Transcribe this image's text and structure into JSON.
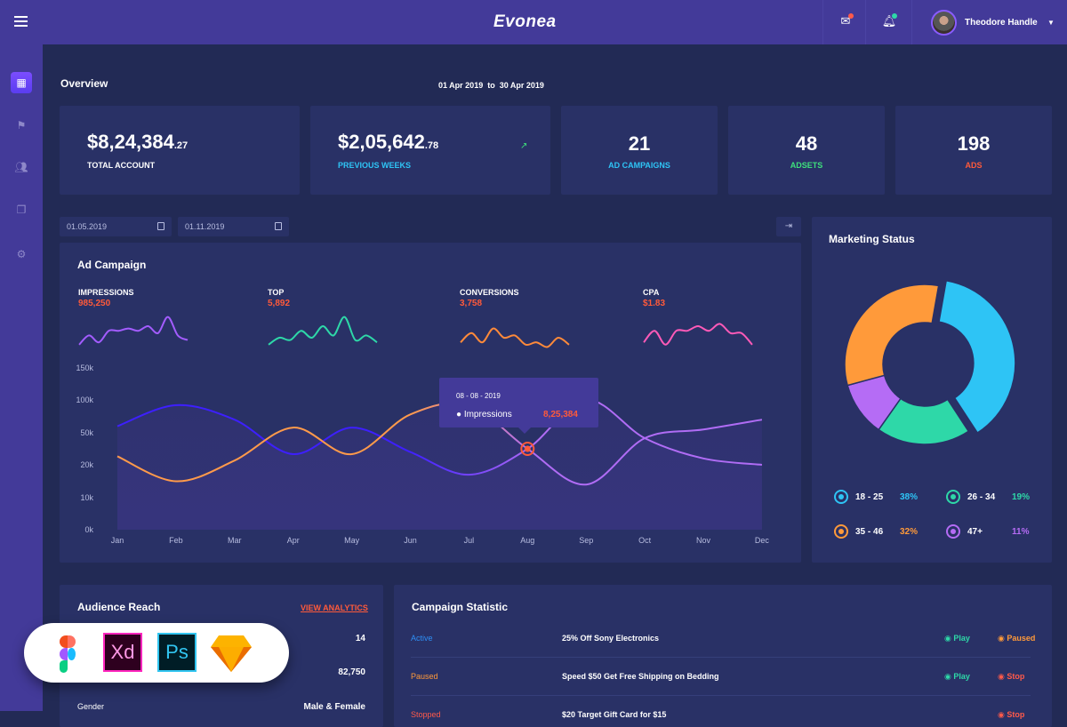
{
  "header": {
    "brand": "Evonea",
    "user_name": "Theodore Handle",
    "icons": [
      "menu-icon",
      "mail-icon",
      "bell-icon",
      "caret-down-icon"
    ],
    "notif_colors": [
      "#ff5a4a",
      "#2ed8a8"
    ]
  },
  "sidebar": {
    "items": [
      "dashboard-icon",
      "flag-icon",
      "users-icon",
      "pages-icon",
      "gear-icon"
    ]
  },
  "overview": {
    "title": "Overview",
    "date_from": "01 Apr 2019",
    "date_to_word": "to",
    "date_to": "30 Apr 2019",
    "stats": [
      {
        "value": "$8,24,384",
        "decimals": ".27",
        "label": "TOTAL ACCOUNT",
        "color": "#ffffff"
      },
      {
        "value": "$2,05,642",
        "decimals": ".78",
        "label": "PREVIOUS WEEKS",
        "color": "#2ec4f5"
      },
      {
        "value": "21",
        "label": "AD CAMPAIGNS",
        "color": "#2ec4f5"
      },
      {
        "value": "48",
        "label": "ADSETS",
        "color": "#3ee07c"
      },
      {
        "value": "198",
        "label": "ADS",
        "color": "#ff5a3a"
      }
    ]
  },
  "filters": {
    "date1": "01.05.2019",
    "date2": "01.11.2019"
  },
  "ad_campaign": {
    "title": "Ad Campaign",
    "metrics": [
      {
        "label": "IMPRESSIONS",
        "value": "985,250",
        "color": "#a35cff",
        "spark": [
          2,
          6,
          3,
          8,
          8,
          9,
          8,
          10,
          7,
          14,
          6,
          4
        ]
      },
      {
        "label": "TOP",
        "value": "5,892",
        "color": "#2ed8a8",
        "spark": [
          2,
          5,
          4,
          8,
          5,
          10,
          6,
          14,
          4,
          6,
          3
        ]
      },
      {
        "label": "CONVERSIONS",
        "value": "3,758",
        "color": "#ff8a3a",
        "spark": [
          3,
          7,
          3,
          9,
          5,
          6,
          2,
          3,
          1,
          5,
          2
        ]
      },
      {
        "label": "CPA",
        "value": "$1.83",
        "color": "#ff5ab8",
        "spark": [
          3,
          8,
          2,
          8,
          8,
          10,
          8,
          11,
          7,
          7,
          2
        ]
      }
    ],
    "tooltip": {
      "date": "08 - 08 - 2019",
      "series": "Impressions",
      "value": "8,25,384"
    }
  },
  "chart_data": {
    "type": "line",
    "categories": [
      "Jan",
      "Feb",
      "Mar",
      "Apr",
      "May",
      "Jun",
      "Jul",
      "Aug",
      "Sep",
      "Oct",
      "Nov",
      "Dec"
    ],
    "yticks": [
      "0k",
      "10k",
      "20k",
      "50k",
      "100k",
      "150k"
    ],
    "ytick_values": [
      0,
      10,
      20,
      50,
      100,
      150
    ],
    "ylim": [
      0,
      150
    ],
    "unit": "k",
    "series": [
      {
        "values": [
          60,
          92,
          70,
          30,
          58,
          32,
          17,
          35,
          100,
          45,
          26,
          20
        ],
        "colors": [
          "#3d1fff",
          "#b06cf5"
        ]
      },
      {
        "values": [
          28,
          15,
          24,
          58,
          30,
          78,
          92,
          35,
          14,
          45,
          55,
          70
        ],
        "colors": [
          "#ff9a4a",
          "#b06cf5"
        ]
      }
    ],
    "highlight_index": 7
  },
  "marketing": {
    "title": "Marketing Status",
    "segments": [
      {
        "label": "18 - 25",
        "pct": "38%",
        "value": 38,
        "color": "#2ec4f5"
      },
      {
        "label": "26 - 34",
        "pct": "19%",
        "value": 19,
        "color": "#2ed8a8"
      },
      {
        "label": "35 - 46",
        "pct": "32%",
        "value": 32,
        "color": "#ff9a3a"
      },
      {
        "label": "47+",
        "pct": "11%",
        "value": 11,
        "color": "#b56cf5"
      }
    ]
  },
  "audience": {
    "title": "Audience Reach",
    "link": "VIEW ANALYTICS",
    "rows": [
      {
        "label": "",
        "value": "14"
      },
      {
        "label": "",
        "value": "82,750"
      },
      {
        "label": "Gender",
        "value": "Male & Female"
      }
    ]
  },
  "campaign_stat": {
    "title": "Campaign Statistic",
    "rows": [
      {
        "status": "Active",
        "status_color": "#2e8ef5",
        "name": "25% Off Sony Electronics",
        "a1": "Play",
        "a1c": "#2ed8a8",
        "a2": "Paused",
        "a2c": "#ff9a3a"
      },
      {
        "status": "Paused",
        "status_color": "#ff9a3a",
        "name": "Speed $50 Get Free Shipping on Bedding",
        "a1": "Play",
        "a1c": "#2ed8a8",
        "a2": "Stop",
        "a2c": "#ff5a4a"
      },
      {
        "status": "Stopped",
        "status_color": "#ff5a4a",
        "name": "$20 Target Gift Card for $15",
        "a1": "",
        "a1c": "#2ed8a8",
        "a2": "Stop",
        "a2c": "#ff5a4a"
      }
    ]
  },
  "tools_badge": [
    "Figma",
    "Xd",
    "Ps",
    "Sketch"
  ]
}
